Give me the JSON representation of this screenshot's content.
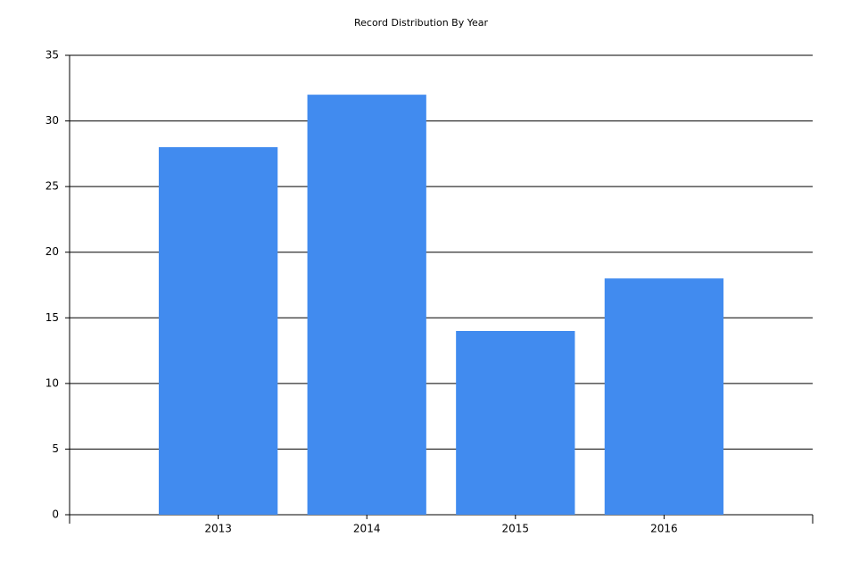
{
  "chart_data": {
    "type": "bar",
    "title": "Record Distribution By Year",
    "categories": [
      "2013",
      "2014",
      "2015",
      "2016"
    ],
    "values": [
      28,
      32,
      14,
      18
    ],
    "color": "#418bef",
    "ylim": [
      0,
      35
    ],
    "yticks": [
      0,
      5,
      10,
      15,
      20,
      25,
      30,
      35
    ],
    "grid": true
  }
}
